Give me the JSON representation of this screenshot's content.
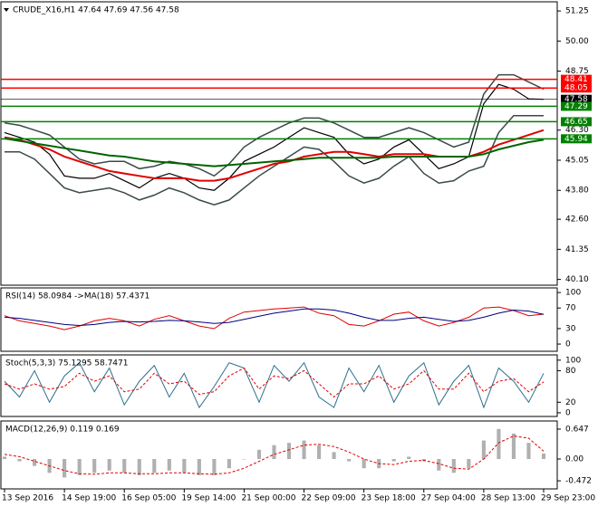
{
  "chart_data": [
    {
      "type": "line",
      "title": "CRUDE_X16,H1 47.64 47.69 47.56 47.58",
      "categories": [
        "13 Sep 2016",
        null,
        null,
        null,
        "14 Sep 19:00",
        null,
        null,
        null,
        "16 Sep 05:00",
        null,
        null,
        null,
        "19 Sep 14:00",
        null,
        null,
        null,
        "21 Sep 00:00",
        null,
        null,
        null,
        "22 Sep 09:00",
        null,
        null,
        null,
        "23 Sep 18:00",
        null,
        null,
        null,
        "27 Sep 04:00",
        null,
        null,
        null,
        "28 Sep 13:00",
        null,
        null,
        null,
        "29 Sep 23:00"
      ],
      "ylim": [
        39.86,
        51.63
      ],
      "yticks": [
        51.25,
        {
          "value": 50,
          "label": "50.00"
        },
        48.75,
        {
          "value": 46.3,
          "label": "46.30"
        },
        45.05,
        {
          "value": 43.8,
          "label": "43.80"
        },
        {
          "value": 42.6,
          "label": "42.60"
        },
        41.35,
        {
          "value": 40.1,
          "label": "40.10"
        }
      ],
      "series": [
        {
          "color": "#000000",
          "width": 1.2,
          "values": [
            46.2,
            46.0,
            45.8,
            45.3,
            44.4,
            44.3,
            44.3,
            44.5,
            44.2,
            43.9,
            44.3,
            44.5,
            44.3,
            43.9,
            43.8,
            44.3,
            45.0,
            45.3,
            45.6,
            46.0,
            46.4,
            46.2,
            46.0,
            45.3,
            44.9,
            45.1,
            45.6,
            45.9,
            45.3,
            44.7,
            44.9,
            45.2,
            47.4,
            48.2,
            48.0,
            47.6,
            47.58
          ]
        },
        {
          "color": "#3a4a4a",
          "width": 1.5,
          "values": [
            46.6,
            46.5,
            46.3,
            46.1,
            45.6,
            45.1,
            44.9,
            45.0,
            45.0,
            44.7,
            44.8,
            45.0,
            44.9,
            44.7,
            44.4,
            44.9,
            45.6,
            46.0,
            46.3,
            46.6,
            46.8,
            46.8,
            46.6,
            46.3,
            46.0,
            46.0,
            46.2,
            46.4,
            46.2,
            45.9,
            45.6,
            45.8,
            47.8,
            48.6,
            48.6,
            48.3,
            48.0
          ]
        },
        {
          "color": "#3a4a4a",
          "width": 1.5,
          "values": [
            45.4,
            45.4,
            45.1,
            44.5,
            43.9,
            43.7,
            43.8,
            43.9,
            43.7,
            43.4,
            43.6,
            43.9,
            43.7,
            43.4,
            43.2,
            43.4,
            43.9,
            44.4,
            44.8,
            45.2,
            45.6,
            45.5,
            45.0,
            44.4,
            44.1,
            44.3,
            44.8,
            45.2,
            44.5,
            44.1,
            44.2,
            44.6,
            44.8,
            46.2,
            46.9,
            46.9,
            46.9
          ]
        },
        {
          "color": "#e00000",
          "width": 2,
          "values": [
            46.0,
            45.9,
            45.7,
            45.5,
            45.2,
            45.0,
            44.8,
            44.6,
            44.5,
            44.4,
            44.3,
            44.3,
            44.3,
            44.2,
            44.2,
            44.3,
            44.5,
            44.7,
            44.9,
            45.0,
            45.2,
            45.3,
            45.4,
            45.4,
            45.3,
            45.2,
            45.3,
            45.3,
            45.3,
            45.2,
            45.2,
            45.2,
            45.4,
            45.7,
            45.9,
            46.1,
            46.3
          ]
        },
        {
          "color": "#006400",
          "width": 2,
          "values": [
            45.95,
            45.85,
            45.75,
            45.65,
            45.55,
            45.45,
            45.35,
            45.25,
            45.2,
            45.1,
            45.0,
            44.95,
            44.9,
            44.85,
            44.8,
            44.85,
            44.9,
            44.95,
            45.0,
            45.05,
            45.1,
            45.15,
            45.15,
            45.15,
            45.15,
            45.15,
            45.2,
            45.2,
            45.2,
            45.2,
            45.2,
            45.2,
            45.3,
            45.5,
            45.65,
            45.8,
            45.9
          ]
        }
      ],
      "levels": [
        {
          "value": 48.41,
          "color": "#ff0000"
        },
        {
          "value": 48.05,
          "color": "#ff0000"
        },
        {
          "value": 47.58,
          "color": "#000000"
        },
        {
          "value": 47.29,
          "color": "#008000"
        },
        {
          "value": 46.65,
          "color": "#008000"
        },
        {
          "value": 45.94,
          "color": "#008000"
        }
      ]
    },
    {
      "type": "line",
      "title": "RSI(14) 58.0984 ->MA(18) 57.4371",
      "ylim": [
        -14,
        109
      ],
      "yticks": [
        100,
        70,
        30,
        0
      ],
      "series": [
        {
          "color": "#e00000",
          "width": 1,
          "values": [
            55,
            45,
            40,
            35,
            28,
            35,
            45,
            50,
            45,
            35,
            48,
            55,
            45,
            35,
            30,
            50,
            62,
            65,
            68,
            70,
            72,
            60,
            55,
            38,
            35,
            45,
            58,
            62,
            45,
            35,
            42,
            52,
            70,
            72,
            65,
            55,
            58.0984
          ]
        },
        {
          "color": "#000080",
          "width": 1,
          "values": [
            52,
            50,
            46,
            42,
            38,
            36,
            38,
            42,
            44,
            43,
            44,
            46,
            45,
            43,
            40,
            42,
            48,
            54,
            60,
            64,
            68,
            68,
            66,
            60,
            52,
            46,
            46,
            50,
            52,
            48,
            44,
            46,
            52,
            60,
            66,
            64,
            57.4371
          ]
        }
      ]
    },
    {
      "type": "line",
      "title": "Stoch(5,3,3) 75.1295 58.7471",
      "ylim": [
        -7,
        110
      ],
      "yticks": [
        100,
        80,
        20,
        0
      ],
      "series": [
        {
          "color": "#2f6f8f",
          "width": 1,
          "values": [
            60,
            30,
            80,
            20,
            70,
            95,
            40,
            85,
            15,
            60,
            90,
            30,
            75,
            10,
            50,
            95,
            85,
            20,
            90,
            60,
            95,
            30,
            10,
            85,
            40,
            90,
            20,
            70,
            95,
            15,
            60,
            90,
            10,
            85,
            60,
            20,
            75.1295
          ]
        },
        {
          "color": "#e00000",
          "width": 1,
          "dashed": true,
          "values": [
            55,
            45,
            55,
            45,
            50,
            75,
            60,
            70,
            40,
            45,
            75,
            55,
            60,
            35,
            40,
            70,
            85,
            45,
            70,
            65,
            80,
            55,
            30,
            55,
            55,
            70,
            45,
            55,
            80,
            45,
            45,
            75,
            40,
            60,
            65,
            40,
            58.7471
          ]
        }
      ]
    },
    {
      "type": "bar",
      "title": "MACD(12,26,9) 0.119 0.169",
      "ylim": [
        -0.647,
        0.823
      ],
      "yticks": [
        0.647,
        {
          "value": 0,
          "label": "0.00"
        },
        -0.472
      ],
      "color": "#b0b0b0",
      "values": [
        0.05,
        -0.05,
        -0.15,
        -0.3,
        -0.4,
        -0.35,
        -0.3,
        -0.25,
        -0.3,
        -0.35,
        -0.3,
        -0.25,
        -0.3,
        -0.35,
        -0.35,
        -0.2,
        0.0,
        0.2,
        0.3,
        0.35,
        0.4,
        0.3,
        0.15,
        -0.05,
        -0.2,
        -0.2,
        -0.05,
        0.05,
        -0.05,
        -0.25,
        -0.3,
        -0.2,
        0.4,
        0.65,
        0.55,
        0.35,
        0.119
      ],
      "series": [
        {
          "color": "#e00000",
          "width": 1,
          "dashed": true,
          "values": [
            0.1,
            0.05,
            -0.05,
            -0.15,
            -0.25,
            -0.32,
            -0.33,
            -0.3,
            -0.3,
            -0.32,
            -0.32,
            -0.3,
            -0.3,
            -0.32,
            -0.33,
            -0.3,
            -0.2,
            -0.05,
            0.1,
            0.2,
            0.3,
            0.32,
            0.27,
            0.15,
            0.0,
            -0.1,
            -0.12,
            -0.05,
            -0.03,
            -0.1,
            -0.2,
            -0.22,
            0.0,
            0.35,
            0.5,
            0.45,
            0.169
          ]
        }
      ]
    }
  ]
}
